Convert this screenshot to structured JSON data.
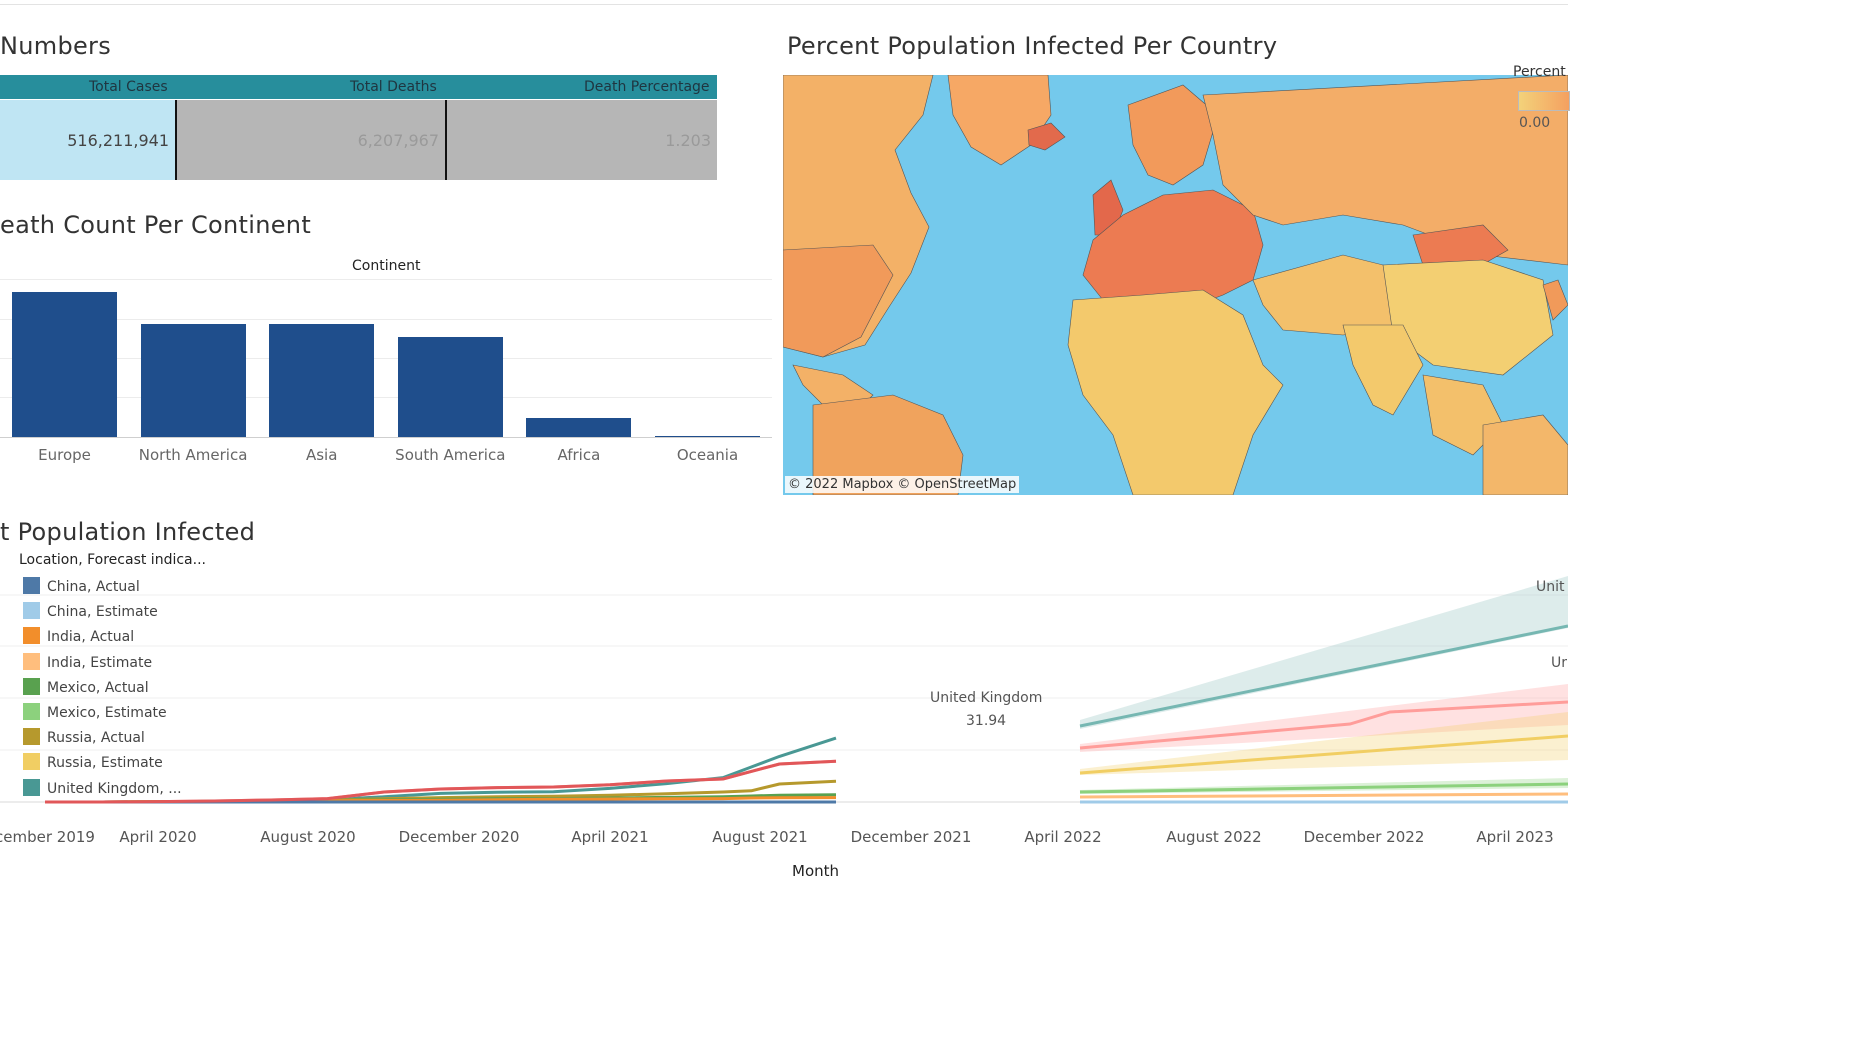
{
  "numbers": {
    "title": "Numbers",
    "headers": [
      "Total Cases",
      "Total Deaths",
      "Death Percentage"
    ],
    "values": [
      "516,211,941",
      "6,207,967",
      "1.203"
    ]
  },
  "deaths": {
    "title": "eath Count Per Continent",
    "axis_title": "Continent"
  },
  "map": {
    "title": "Percent Population Infected Per Country",
    "credit": "© 2022 Mapbox  © OpenStreetMap",
    "legend_title": "Percent",
    "legend_min": "0.00",
    "colors": {
      "water": "#74c9ec",
      "low": "#f3d27a",
      "high": "#e8664a"
    }
  },
  "line": {
    "title": "t Population Infected",
    "legend_title": "Location, Forecast indica...",
    "legend": [
      {
        "label": "China, Actual",
        "color": "#4e79a7"
      },
      {
        "label": "China, Estimate",
        "color": "#a0cbe8"
      },
      {
        "label": "India, Actual",
        "color": "#f28e2b"
      },
      {
        "label": "India, Estimate",
        "color": "#ffbe7d"
      },
      {
        "label": "Mexico, Actual",
        "color": "#59a14f"
      },
      {
        "label": "Mexico, Estimate",
        "color": "#8cd17d"
      },
      {
        "label": "Russia, Actual",
        "color": "#b6992d"
      },
      {
        "label": "Russia, Estimate",
        "color": "#f1ce63"
      },
      {
        "label": "United Kingdom, ...",
        "color": "#499894"
      }
    ],
    "xaxis_title": "Month",
    "annotation": {
      "name": "United Kingdom",
      "value": "31.94"
    },
    "edge_labels": [
      "Unit",
      "Ur"
    ]
  },
  "chart_data": [
    {
      "type": "table",
      "columns": [
        "Total Cases",
        "Total Deaths",
        "Death Percentage"
      ],
      "rows": [
        [
          516211941,
          6207967,
          1.203
        ]
      ]
    },
    {
      "type": "bar",
      "title": "eath Count Per Continent",
      "xlabel": "Continent",
      "categories": [
        "Europe",
        "North America",
        "Asia",
        "South America",
        "Africa",
        "Oceania"
      ],
      "values": [
        1.0,
        0.78,
        0.78,
        0.69,
        0.13,
        0.01
      ]
    },
    {
      "type": "line",
      "title": "t Population Infected",
      "xlabel": "Month",
      "x_ticks": [
        "cember 2019",
        "April 2020",
        "August 2020",
        "December 2020",
        "April 2021",
        "August 2021",
        "December 2021",
        "April 2022",
        "August 2022",
        "December 2022",
        "April 2023"
      ],
      "x_months": [
        "2019-12",
        "2020-02",
        "2020-04",
        "2020-06",
        "2020-08",
        "2020-10",
        "2020-12",
        "2021-02",
        "2021-04",
        "2021-06",
        "2021-08",
        "2021-10",
        "2021-12",
        "2022-01",
        "2022-02",
        "2022-04"
      ],
      "series": [
        {
          "name": "United Kingdom, Actual",
          "color": "#499894",
          "values": [
            0,
            0,
            0.1,
            0.3,
            0.6,
            1.2,
            2.6,
            4.3,
            4.9,
            5.1,
            6.8,
            9.2,
            12.2,
            17.5,
            22.8,
            31.94
          ]
        },
        {
          "name": "United Kingdom, Estimate",
          "color": "#ff9d9a",
          "values": [
            0,
            0,
            0.2,
            0.5,
            1.0,
            1.7,
            5.0,
            6.5,
            7.2,
            7.5,
            8.6,
            10.5,
            11.5,
            15.3,
            19.0,
            20.4
          ]
        },
        {
          "name": "Russia, Actual",
          "color": "#b6992d",
          "values": [
            0,
            0,
            0.1,
            0.3,
            0.6,
            1.0,
            1.6,
            2.2,
            2.6,
            2.9,
            3.4,
            4.1,
            5.0,
            5.6,
            9.0,
            10.4
          ]
        },
        {
          "name": "Mexico, Actual",
          "color": "#59a14f",
          "values": [
            0,
            0,
            0.1,
            0.3,
            0.5,
            0.8,
            1.1,
            1.4,
            1.6,
            1.7,
            2.0,
            2.3,
            2.6,
            3.0,
            3.4,
            3.6
          ]
        },
        {
          "name": "India, Actual",
          "color": "#f28e2b",
          "values": [
            0,
            0,
            0.1,
            0.2,
            0.4,
            0.6,
            0.8,
            0.9,
            1.1,
            1.4,
            1.5,
            1.6,
            1.7,
            2.0,
            2.1,
            2.2
          ]
        },
        {
          "name": "China, Actual",
          "color": "#4e79a7",
          "values": [
            0,
            0,
            0,
            0,
            0,
            0,
            0,
            0,
            0,
            0,
            0,
            0,
            0,
            0,
            0,
            0
          ]
        }
      ]
    }
  ]
}
